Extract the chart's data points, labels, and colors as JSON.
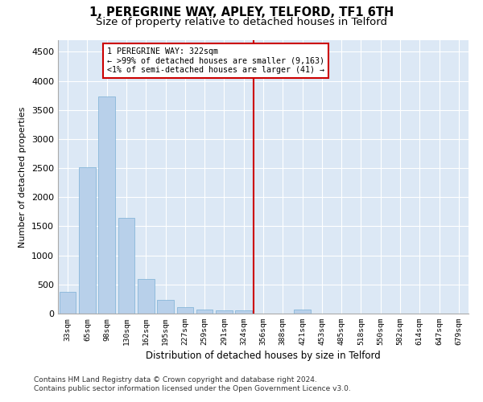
{
  "title": "1, PEREGRINE WAY, APLEY, TELFORD, TF1 6TH",
  "subtitle": "Size of property relative to detached houses in Telford",
  "xlabel": "Distribution of detached houses by size in Telford",
  "ylabel": "Number of detached properties",
  "categories": [
    "33sqm",
    "65sqm",
    "98sqm",
    "130sqm",
    "162sqm",
    "195sqm",
    "227sqm",
    "259sqm",
    "291sqm",
    "324sqm",
    "356sqm",
    "388sqm",
    "421sqm",
    "453sqm",
    "485sqm",
    "518sqm",
    "550sqm",
    "582sqm",
    "614sqm",
    "647sqm",
    "679sqm"
  ],
  "values": [
    380,
    2510,
    3730,
    1640,
    600,
    240,
    115,
    65,
    55,
    50,
    0,
    0,
    65,
    0,
    0,
    0,
    0,
    0,
    0,
    0,
    0
  ],
  "bar_color": "#b8d0ea",
  "bar_edge_color": "#7aafd4",
  "vline_color": "#cc0000",
  "annotation_text": "1 PEREGRINE WAY: 322sqm\n← >99% of detached houses are smaller (9,163)\n<1% of semi-detached houses are larger (41) →",
  "annotation_box_color": "#cc0000",
  "ylim": [
    0,
    4700
  ],
  "yticks": [
    0,
    500,
    1000,
    1500,
    2000,
    2500,
    3000,
    3500,
    4000,
    4500
  ],
  "bg_color": "#dce8f5",
  "footer": "Contains HM Land Registry data © Crown copyright and database right 2024.\nContains public sector information licensed under the Open Government Licence v3.0.",
  "title_fontsize": 10.5,
  "subtitle_fontsize": 9.5,
  "footer_fontsize": 6.5
}
